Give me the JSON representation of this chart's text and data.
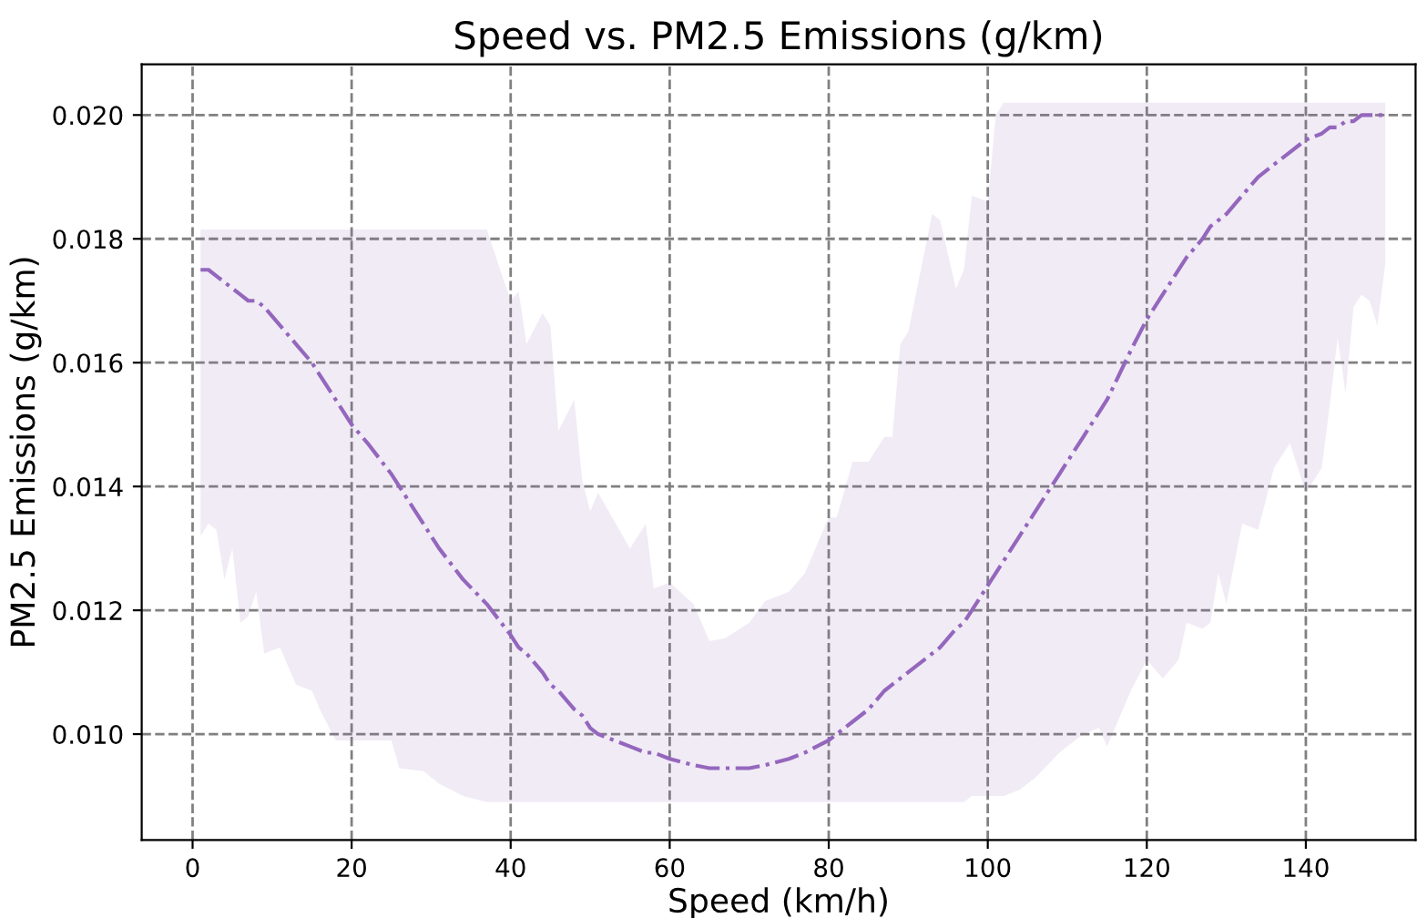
{
  "chart_data": {
    "type": "line",
    "title": "Speed vs. PM2.5 Emissions (g/km)",
    "xlabel": "Speed (km/h)",
    "ylabel": "PM2.5 Emissions (g/km)",
    "xlim": [
      -6.4,
      153.8
    ],
    "ylim": [
      0.00829,
      0.02082
    ],
    "xticks": [
      0,
      20,
      40,
      60,
      80,
      100,
      120,
      140
    ],
    "yticks": [
      {
        "value": 0.01,
        "label": "0.010"
      },
      {
        "value": 0.012,
        "label": "0.012"
      },
      {
        "value": 0.014,
        "label": "0.014"
      },
      {
        "value": 0.016,
        "label": "0.016"
      },
      {
        "value": 0.018,
        "label": "0.018"
      },
      {
        "value": 0.02,
        "label": "0.020"
      }
    ],
    "grid": true,
    "line_style": "dashdot",
    "marker": "none",
    "series": [
      {
        "color": "#9467bd",
        "x": [
          1,
          2,
          3,
          4,
          5,
          6,
          7,
          8,
          9,
          11,
          13,
          15,
          16,
          18,
          20,
          22,
          25,
          26,
          29,
          31,
          34,
          37,
          40,
          41,
          42,
          44,
          45,
          46,
          48,
          49,
          50,
          51,
          55,
          57,
          58,
          60,
          63,
          65,
          67,
          70,
          72,
          75,
          77,
          80,
          81,
          83,
          85,
          87,
          88,
          89,
          90,
          93,
          94,
          96,
          97,
          98,
          100,
          101,
          102,
          104,
          106,
          109,
          112,
          114,
          115,
          118,
          120,
          122,
          124,
          125,
          127,
          128,
          129,
          130,
          132,
          134,
          136,
          138,
          140,
          142,
          143,
          144,
          145,
          146,
          147,
          148,
          149,
          150
        ],
        "values": [
          0.0175,
          0.0175,
          0.0174,
          0.0173,
          0.0172,
          0.0171,
          0.017,
          0.017,
          0.0169,
          0.0166,
          0.0163,
          0.016,
          0.0158,
          0.0154,
          0.015,
          0.0147,
          0.0142,
          0.014,
          0.0134,
          0.013,
          0.0125,
          0.0121,
          0.0116,
          0.0114,
          0.0113,
          0.011,
          0.0108,
          0.0107,
          0.0104,
          0.0103,
          0.0101,
          0.01,
          0.0098,
          0.0097,
          0.0097,
          0.0096,
          0.0095,
          0.00945,
          0.00945,
          0.00945,
          0.0095,
          0.0096,
          0.0097,
          0.0099,
          0.01,
          0.0102,
          0.0104,
          0.0107,
          0.0108,
          0.0109,
          0.011,
          0.0113,
          0.0114,
          0.0117,
          0.0118,
          0.012,
          0.0124,
          0.0126,
          0.0128,
          0.0132,
          0.0136,
          0.0142,
          0.0148,
          0.0152,
          0.0154,
          0.0162,
          0.0167,
          0.0171,
          0.0175,
          0.0177,
          0.018,
          0.0182,
          0.0183,
          0.0184,
          0.0187,
          0.019,
          0.0192,
          0.0194,
          0.0196,
          0.0197,
          0.0198,
          0.0198,
          0.0199,
          0.0199,
          0.02,
          0.02,
          0.02,
          0.02
        ],
        "lower": [
          0.0132,
          0.0134,
          0.0133,
          0.0125,
          0.013,
          0.0118,
          0.0119,
          0.0123,
          0.0113,
          0.0114,
          0.0108,
          0.0107,
          0.0104,
          0.0099,
          0.0099,
          0.0099,
          0.0099,
          0.00945,
          0.0094,
          0.0092,
          0.009,
          0.0089,
          0.0089,
          0.0089,
          0.0089,
          0.0089,
          0.0089,
          0.0089,
          0.0089,
          0.0089,
          0.0089,
          0.0089,
          0.0089,
          0.0089,
          0.0089,
          0.0089,
          0.0089,
          0.0089,
          0.0089,
          0.0089,
          0.0089,
          0.0089,
          0.0089,
          0.0089,
          0.0089,
          0.0089,
          0.0089,
          0.0089,
          0.0089,
          0.0089,
          0.0089,
          0.0089,
          0.0089,
          0.0089,
          0.0089,
          0.009,
          0.009,
          0.009,
          0.009,
          0.0091,
          0.0093,
          0.0097,
          0.01,
          0.0101,
          0.0098,
          0.0107,
          0.0112,
          0.0109,
          0.0112,
          0.0118,
          0.0117,
          0.0118,
          0.0126,
          0.0121,
          0.0134,
          0.0133,
          0.0143,
          0.0147,
          0.0139,
          0.0143,
          0.0153,
          0.0164,
          0.0155,
          0.0169,
          0.0171,
          0.017,
          0.0166,
          0.0176
        ],
        "upper": [
          0.01815,
          0.01815,
          0.01815,
          0.01815,
          0.01815,
          0.01815,
          0.01815,
          0.01815,
          0.01815,
          0.01815,
          0.01815,
          0.01815,
          0.01815,
          0.01815,
          0.01815,
          0.01815,
          0.01815,
          0.01815,
          0.01815,
          0.01815,
          0.01815,
          0.01815,
          0.017,
          0.01715,
          0.0163,
          0.0168,
          0.0166,
          0.0149,
          0.0154,
          0.0141,
          0.0136,
          0.0139,
          0.013,
          0.0134,
          0.01235,
          0.01245,
          0.0121,
          0.0115,
          0.01155,
          0.0118,
          0.01215,
          0.0123,
          0.0126,
          0.0135,
          0.0135,
          0.0144,
          0.0144,
          0.0148,
          0.0148,
          0.0163,
          0.0165,
          0.0184,
          0.0183,
          0.0172,
          0.0175,
          0.0187,
          0.0186,
          0.02,
          0.0202,
          0.0202,
          0.0202,
          0.0202,
          0.0202,
          0.0202,
          0.0202,
          0.0202,
          0.0202,
          0.0202,
          0.0202,
          0.0202,
          0.0202,
          0.0202,
          0.0202,
          0.0202,
          0.0202,
          0.0202,
          0.0202,
          0.0202,
          0.0202,
          0.0202,
          0.0202,
          0.0202,
          0.0202,
          0.0202,
          0.0202,
          0.0202,
          0.0202,
          0.0202
        ]
      }
    ]
  }
}
